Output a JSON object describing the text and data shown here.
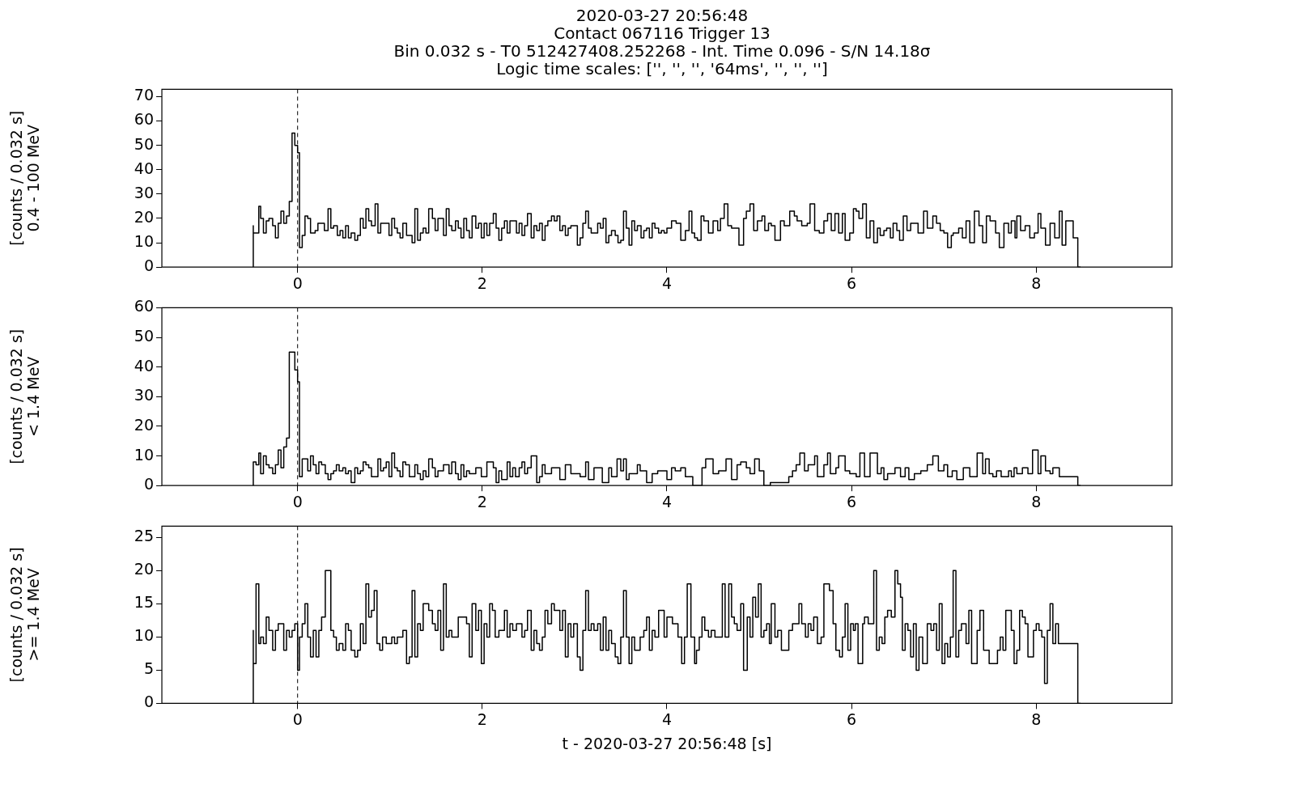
{
  "chart_data": [
    {
      "type": "step",
      "title": "2020-03-27 20:56:48",
      "subtitle": "Contact 067116   Trigger 13",
      "annotations": [
        "Bin 0.032 s -  T0 512427408.252268 - Int. Time 0.096 - S/N 14.18σ",
        "Logic time scales: ['', '', '', '64ms', '', '', '']"
      ],
      "ylabel": "[counts / 0.032 s]\n0.4 - 100 MeV",
      "xlim": [
        -1.47,
        9.47
      ],
      "xticks": [
        0,
        2,
        4,
        6,
        8
      ],
      "ylim": [
        0,
        73
      ],
      "yticks": [
        0,
        10,
        20,
        30,
        40,
        50,
        60,
        70
      ],
      "grid": false,
      "line_style": "solid",
      "ref_lines": [
        {
          "axis": "x",
          "value": 0,
          "line_style": "dashed",
          "color": "#000000"
        }
      ],
      "series": [
        {
          "color": "#000000",
          "x": [
            -0.48,
            -0.48,
            -0.42,
            -0.4,
            -0.37,
            -0.34,
            -0.31,
            -0.27,
            -0.24,
            -0.21,
            -0.18,
            -0.15,
            -0.12,
            -0.09,
            -0.06,
            -0.03,
            0.0,
            0.02,
            0.05,
            0.08,
            0.11,
            0.14,
            0.19,
            0.22,
            0.29,
            0.33,
            0.36,
            0.39,
            0.43,
            0.46,
            0.49,
            0.52,
            0.55,
            0.58,
            0.62,
            0.65,
            0.68,
            0.71,
            0.74,
            0.77,
            0.8,
            0.84,
            0.87,
            0.9,
            0.99,
            1.02,
            1.05,
            1.08,
            1.11,
            1.14,
            1.18,
            1.24,
            1.27,
            1.3,
            1.33,
            1.36,
            1.39,
            1.42,
            1.46,
            1.49,
            1.52,
            1.58,
            1.61,
            1.64,
            1.67,
            1.71,
            1.74,
            1.77,
            1.8,
            1.83,
            1.86,
            1.89,
            1.93,
            1.96,
            1.99,
            2.02,
            2.05,
            2.08,
            2.12,
            2.15,
            2.18,
            2.21,
            2.24,
            2.27,
            2.3,
            2.37,
            2.4,
            2.43,
            2.46,
            2.49,
            2.53,
            2.56,
            2.59,
            2.62,
            2.65,
            2.68,
            2.71,
            2.75,
            2.78,
            2.81,
            2.84,
            2.87,
            2.9,
            2.93,
            2.96,
            3.03,
            3.06,
            3.09,
            3.12,
            3.15,
            3.18,
            3.25,
            3.28,
            3.31,
            3.34,
            3.37,
            3.4,
            3.44,
            3.47,
            3.5,
            3.53,
            3.56,
            3.59,
            3.62,
            3.65,
            3.68,
            3.72,
            3.75,
            3.78,
            3.81,
            3.84,
            3.87,
            3.91,
            3.94,
            3.97,
            4.0,
            4.05,
            4.1,
            4.15,
            4.2,
            4.24,
            4.27,
            4.3,
            4.33,
            4.37,
            4.4,
            4.45,
            4.5,
            4.55,
            4.58,
            4.62,
            4.66,
            4.7,
            4.78,
            4.83,
            4.86,
            4.9,
            4.94,
            4.98,
            5.03,
            5.06,
            5.1,
            5.13,
            5.17,
            5.23,
            5.27,
            5.33,
            5.38,
            5.41,
            5.46,
            5.52,
            5.55,
            5.6,
            5.65,
            5.7,
            5.74,
            5.78,
            5.82,
            5.86,
            5.9,
            5.93,
            5.98,
            6.02,
            6.05,
            6.08,
            6.12,
            6.16,
            6.2,
            6.24,
            6.28,
            6.31,
            6.35,
            6.38,
            6.42,
            6.45,
            6.49,
            6.52,
            6.56,
            6.6,
            6.64,
            6.72,
            6.78,
            6.82,
            6.88,
            6.92,
            6.96,
            7.0,
            7.04,
            7.08,
            7.1,
            7.16,
            7.2,
            7.24,
            7.28,
            7.33,
            7.38,
            7.42,
            7.46,
            7.5,
            7.56,
            7.6,
            7.65,
            7.7,
            7.73,
            7.77,
            7.79,
            7.83,
            7.88,
            7.93,
            7.98,
            8.02,
            8.05,
            8.1,
            8.15,
            8.2,
            8.25,
            8.28,
            8.32,
            8.36,
            8.4,
            8.45,
            8.48
          ],
          "values": [
            0,
            17,
            14,
            25,
            20,
            14,
            19,
            20,
            17,
            12,
            18,
            23,
            18,
            21,
            27,
            55,
            50,
            47,
            8,
            13,
            21,
            20,
            14,
            15,
            18,
            15,
            24,
            16,
            17,
            13,
            15,
            12,
            17,
            12,
            14,
            11,
            13,
            20,
            16,
            24,
            19,
            17,
            26,
            14,
            18,
            13,
            20,
            16,
            14,
            12,
            18,
            13,
            10,
            24,
            11,
            14,
            16,
            14,
            24,
            20,
            15,
            20,
            13,
            24,
            17,
            15,
            19,
            16,
            12,
            20,
            15,
            12,
            21,
            16,
            18,
            12,
            18,
            13,
            18,
            22,
            16,
            11,
            16,
            19,
            14,
            19,
            14,
            18,
            13,
            17,
            22,
            12,
            17,
            15,
            18,
            11,
            17,
            19,
            21,
            19,
            21,
            15,
            17,
            13,
            16,
            17,
            9,
            12,
            18,
            23,
            16,
            14,
            18,
            16,
            20,
            10,
            13,
            15,
            13,
            10,
            11,
            23,
            16,
            9,
            19,
            15,
            17,
            12,
            15,
            16,
            12,
            18,
            16,
            14,
            15,
            14,
            16,
            19,
            18,
            11,
            15,
            23,
            14,
            12,
            11,
            21,
            19,
            14,
            19,
            15,
            20,
            26,
            17,
            16,
            9,
            20,
            23,
            26,
            15,
            19,
            21,
            15,
            18,
            17,
            11,
            19,
            17,
            23,
            21,
            19,
            17,
            18,
            26,
            15,
            14,
            19,
            22,
            15,
            22,
            14,
            22,
            11,
            14,
            24,
            23,
            20,
            26,
            12,
            19,
            10,
            16,
            13,
            15,
            16,
            12,
            18,
            15,
            11,
            21,
            15,
            18,
            14,
            23,
            16,
            21,
            18,
            15,
            14,
            8,
            13,
            14,
            16,
            12,
            19,
            10,
            23,
            17,
            10,
            21,
            19,
            14,
            8,
            18,
            14,
            19,
            12,
            21,
            15,
            17,
            12,
            14,
            22,
            16,
            9,
            18,
            12,
            23,
            9,
            19,
            19,
            12,
            0
          ]
        }
      ]
    },
    {
      "type": "step",
      "ylabel": "[counts / 0.032 s]\n< 1.4 MeV",
      "xlim": [
        -1.47,
        9.47
      ],
      "xticks": [
        0,
        2,
        4,
        6,
        8
      ],
      "ylim": [
        0,
        60
      ],
      "yticks": [
        0,
        10,
        20,
        30,
        40,
        50,
        60
      ],
      "grid": false,
      "line_style": "solid",
      "ref_lines": [
        {
          "axis": "x",
          "value": 0,
          "line_style": "dashed",
          "color": "#000000"
        }
      ],
      "series": [
        {
          "color": "#000000",
          "x": [
            -0.48,
            -0.48,
            -0.45,
            -0.42,
            -0.4,
            -0.37,
            -0.34,
            -0.31,
            -0.27,
            -0.24,
            -0.21,
            -0.18,
            -0.15,
            -0.12,
            -0.09,
            -0.03,
            0.0,
            0.02,
            0.05,
            0.11,
            0.14,
            0.17,
            0.2,
            0.23,
            0.26,
            0.3,
            0.33,
            0.36,
            0.39,
            0.42,
            0.45,
            0.49,
            0.52,
            0.55,
            0.58,
            0.62,
            0.65,
            0.68,
            0.71,
            0.74,
            0.77,
            0.8,
            0.87,
            0.9,
            0.93,
            0.96,
            0.99,
            1.02,
            1.05,
            1.08,
            1.11,
            1.14,
            1.17,
            1.21,
            1.27,
            1.3,
            1.33,
            1.36,
            1.39,
            1.42,
            1.46,
            1.49,
            1.52,
            1.58,
            1.64,
            1.67,
            1.71,
            1.74,
            1.77,
            1.8,
            1.83,
            1.86,
            1.93,
            1.99,
            2.05,
            2.12,
            2.15,
            2.18,
            2.21,
            2.27,
            2.3,
            2.33,
            2.36,
            2.4,
            2.43,
            2.46,
            2.49,
            2.53,
            2.59,
            2.62,
            2.65,
            2.68,
            2.75,
            2.84,
            2.9,
            2.96,
            3.06,
            3.12,
            3.15,
            3.21,
            3.3,
            3.37,
            3.4,
            3.46,
            3.5,
            3.53,
            3.56,
            3.59,
            3.62,
            3.68,
            3.71,
            3.78,
            3.84,
            3.9,
            4.0,
            4.05,
            4.09,
            4.15,
            4.2,
            4.28,
            4.38,
            4.42,
            4.5,
            4.56,
            4.64,
            4.7,
            4.76,
            4.8,
            4.86,
            4.9,
            4.95,
            5.0,
            5.05,
            5.12,
            5.32,
            5.36,
            5.4,
            5.44,
            5.49,
            5.53,
            5.6,
            5.63,
            5.7,
            5.74,
            5.77,
            5.83,
            5.86,
            5.93,
            5.98,
            6.05,
            6.09,
            6.14,
            6.2,
            6.28,
            6.32,
            6.35,
            6.39,
            6.47,
            6.53,
            6.58,
            6.62,
            6.68,
            6.75,
            6.82,
            6.88,
            6.94,
            7.0,
            7.04,
            7.09,
            7.14,
            7.21,
            7.28,
            7.36,
            7.42,
            7.45,
            7.49,
            7.53,
            7.57,
            7.62,
            7.7,
            7.73,
            7.76,
            7.79,
            7.85,
            7.91,
            7.96,
            8.02,
            8.05,
            8.1,
            8.15,
            8.18,
            8.25,
            8.45,
            8.48
          ],
          "values": [
            0,
            6,
            8,
            7,
            11,
            4,
            10,
            7,
            6,
            4,
            7,
            12,
            6,
            13,
            16,
            45,
            39,
            35,
            3,
            9,
            5,
            10,
            7,
            4,
            8,
            7,
            4,
            2,
            4,
            5,
            7,
            5,
            6,
            4,
            5,
            1,
            6,
            4,
            5,
            8,
            7,
            6,
            3,
            9,
            5,
            6,
            8,
            3,
            11,
            6,
            5,
            3,
            8,
            7,
            3,
            7,
            4,
            2,
            5,
            3,
            9,
            6,
            3,
            5,
            7,
            4,
            8,
            4,
            2,
            7,
            3,
            5,
            4,
            6,
            3,
            8,
            6,
            1,
            5,
            2,
            8,
            3,
            6,
            3,
            6,
            8,
            4,
            6,
            10,
            1,
            3,
            7,
            4,
            6,
            2,
            7,
            4,
            3,
            8,
            2,
            6,
            1,
            6,
            3,
            9,
            5,
            9,
            2,
            4,
            4,
            7,
            5,
            1,
            4,
            5,
            2,
            6,
            5,
            6,
            3,
            0,
            6,
            9,
            4,
            5,
            9,
            2,
            7,
            8,
            6,
            4,
            9,
            5,
            0,
            1,
            3,
            5,
            7,
            11,
            5,
            7,
            10,
            3,
            7,
            11,
            4,
            6,
            10,
            5,
            4,
            3,
            11,
            3,
            11,
            4,
            6,
            2,
            4,
            6,
            3,
            6,
            2,
            4,
            5,
            7,
            10,
            5,
            7,
            3,
            5,
            2,
            6,
            3,
            11,
            4,
            9,
            4,
            3,
            5,
            3,
            5,
            3,
            6,
            4,
            6,
            4,
            12,
            4,
            10,
            5,
            4,
            6,
            3,
            0
          ]
        }
      ]
    },
    {
      "type": "step",
      "ylabel": "[counts / 0.032 s]\n>= 1.4 MeV",
      "xlabel": "t - 2020-03-27 20:56:48 [s]",
      "xlim": [
        -1.47,
        9.47
      ],
      "xticks": [
        0,
        2,
        4,
        6,
        8
      ],
      "ylim": [
        0,
        26.7
      ],
      "yticks": [
        0,
        5,
        10,
        15,
        20,
        25
      ],
      "grid": false,
      "line_style": "solid",
      "ref_lines": [
        {
          "axis": "x",
          "value": 0,
          "line_style": "dashed",
          "color": "#000000"
        }
      ],
      "series": [
        {
          "color": "#000000",
          "x": [
            -0.48,
            -0.48,
            -0.45,
            -0.42,
            -0.4,
            -0.37,
            -0.34,
            -0.31,
            -0.27,
            -0.24,
            -0.21,
            -0.15,
            -0.12,
            -0.09,
            -0.06,
            -0.03,
            0.0,
            0.02,
            0.05,
            0.08,
            0.11,
            0.14,
            0.17,
            0.2,
            0.23,
            0.26,
            0.3,
            0.36,
            0.39,
            0.42,
            0.45,
            0.49,
            0.52,
            0.55,
            0.58,
            0.62,
            0.65,
            0.68,
            0.71,
            0.74,
            0.77,
            0.8,
            0.83,
            0.86,
            0.89,
            0.92,
            0.96,
            1.02,
            1.05,
            1.08,
            1.14,
            1.18,
            1.21,
            1.24,
            1.27,
            1.3,
            1.33,
            1.36,
            1.42,
            1.46,
            1.49,
            1.52,
            1.55,
            1.58,
            1.61,
            1.64,
            1.67,
            1.74,
            1.83,
            1.86,
            1.89,
            1.93,
            1.96,
            1.99,
            2.02,
            2.05,
            2.08,
            2.11,
            2.14,
            2.18,
            2.24,
            2.27,
            2.3,
            2.33,
            2.37,
            2.43,
            2.46,
            2.49,
            2.53,
            2.56,
            2.59,
            2.62,
            2.65,
            2.68,
            2.71,
            2.75,
            2.78,
            2.84,
            2.87,
            2.9,
            2.93,
            2.96,
            2.99,
            3.03,
            3.06,
            3.09,
            3.12,
            3.15,
            3.18,
            3.21,
            3.25,
            3.28,
            3.31,
            3.34,
            3.37,
            3.4,
            3.44,
            3.47,
            3.5,
            3.53,
            3.56,
            3.59,
            3.62,
            3.65,
            3.71,
            3.75,
            3.78,
            3.81,
            3.84,
            3.87,
            3.91,
            3.97,
            4.0,
            4.06,
            4.12,
            4.16,
            4.19,
            4.22,
            4.26,
            4.3,
            4.32,
            4.35,
            4.38,
            4.41,
            4.45,
            4.48,
            4.52,
            4.6,
            4.63,
            4.67,
            4.7,
            4.73,
            4.76,
            4.8,
            4.83,
            4.87,
            4.9,
            4.93,
            4.96,
            4.99,
            5.02,
            5.05,
            5.08,
            5.11,
            5.13,
            5.17,
            5.2,
            5.24,
            5.32,
            5.36,
            5.43,
            5.46,
            5.5,
            5.53,
            5.56,
            5.59,
            5.63,
            5.67,
            5.7,
            5.76,
            5.8,
            5.83,
            5.87,
            5.9,
            5.93,
            5.96,
            5.99,
            6.02,
            6.04,
            6.07,
            6.12,
            6.14,
            6.18,
            6.24,
            6.27,
            6.3,
            6.33,
            6.36,
            6.39,
            6.43,
            6.47,
            6.5,
            6.53,
            6.55,
            6.58,
            6.61,
            6.64,
            6.67,
            6.7,
            6.73,
            6.77,
            6.82,
            6.86,
            6.89,
            6.92,
            6.95,
            6.98,
            7.01,
            7.04,
            7.07,
            7.1,
            7.13,
            7.16,
            7.19,
            7.24,
            7.27,
            7.3,
            7.36,
            7.39,
            7.43,
            7.49,
            7.58,
            7.61,
            7.64,
            7.67,
            7.73,
            7.76,
            7.79,
            7.82,
            7.85,
            7.88,
            7.91,
            7.97,
            8.0,
            8.03,
            8.06,
            8.09,
            8.12,
            8.15,
            8.18,
            8.21,
            8.24,
            8.27,
            8.45,
            8.48
          ],
          "values": [
            0,
            11,
            6,
            18,
            9,
            10,
            9,
            13,
            11,
            8,
            11,
            12,
            8,
            11,
            10,
            11,
            12,
            5,
            10,
            12,
            15,
            10,
            7,
            11,
            7,
            11,
            13,
            20,
            11,
            10,
            8,
            9,
            8,
            12,
            11,
            8,
            7,
            8,
            12,
            9,
            18,
            13,
            14,
            17,
            9,
            8,
            10,
            9,
            10,
            9,
            10,
            11,
            6,
            7,
            17,
            7,
            12,
            11,
            15,
            14,
            12,
            11,
            14,
            8,
            18,
            10,
            11,
            10,
            13,
            12,
            7,
            15,
            11,
            14,
            6,
            12,
            10,
            15,
            14,
            10,
            11,
            14,
            10,
            12,
            11,
            12,
            10,
            11,
            14,
            8,
            11,
            9,
            8,
            10,
            14,
            12,
            15,
            14,
            11,
            14,
            7,
            12,
            10,
            12,
            7,
            5,
            11,
            17,
            11,
            12,
            11,
            12,
            8,
            13,
            8,
            11,
            9,
            7,
            6,
            10,
            17,
            10,
            6,
            10,
            8,
            10,
            11,
            13,
            8,
            11,
            10,
            14,
            10,
            13,
            12,
            10,
            6,
            10,
            18,
            10,
            6,
            8,
            10,
            13,
            11,
            10,
            11,
            10,
            18,
            10,
            18,
            13,
            12,
            11,
            15,
            5,
            13,
            10,
            16,
            13,
            18,
            10,
            11,
            12,
            9,
            15,
            10,
            11,
            8,
            11,
            12,
            15,
            12,
            10,
            12,
            11,
            13,
            9,
            10,
            18,
            17,
            12,
            8,
            7,
            10,
            15,
            8,
            12,
            11,
            12,
            6,
            12,
            13,
            12,
            20,
            8,
            10,
            9,
            13,
            14,
            13,
            20,
            18,
            16,
            8,
            12,
            11,
            7,
            12,
            5,
            10,
            6,
            12,
            11,
            12,
            8,
            15,
            6,
            9,
            7,
            10,
            20,
            7,
            11,
            12,
            9,
            14,
            6,
            11,
            14,
            8,
            6,
            8,
            10,
            8,
            14,
            11,
            6,
            8,
            14,
            13,
            12,
            7,
            11,
            12,
            11,
            10,
            3,
            11,
            15,
            9,
            12,
            9,
            9,
            0
          ]
        }
      ]
    }
  ]
}
